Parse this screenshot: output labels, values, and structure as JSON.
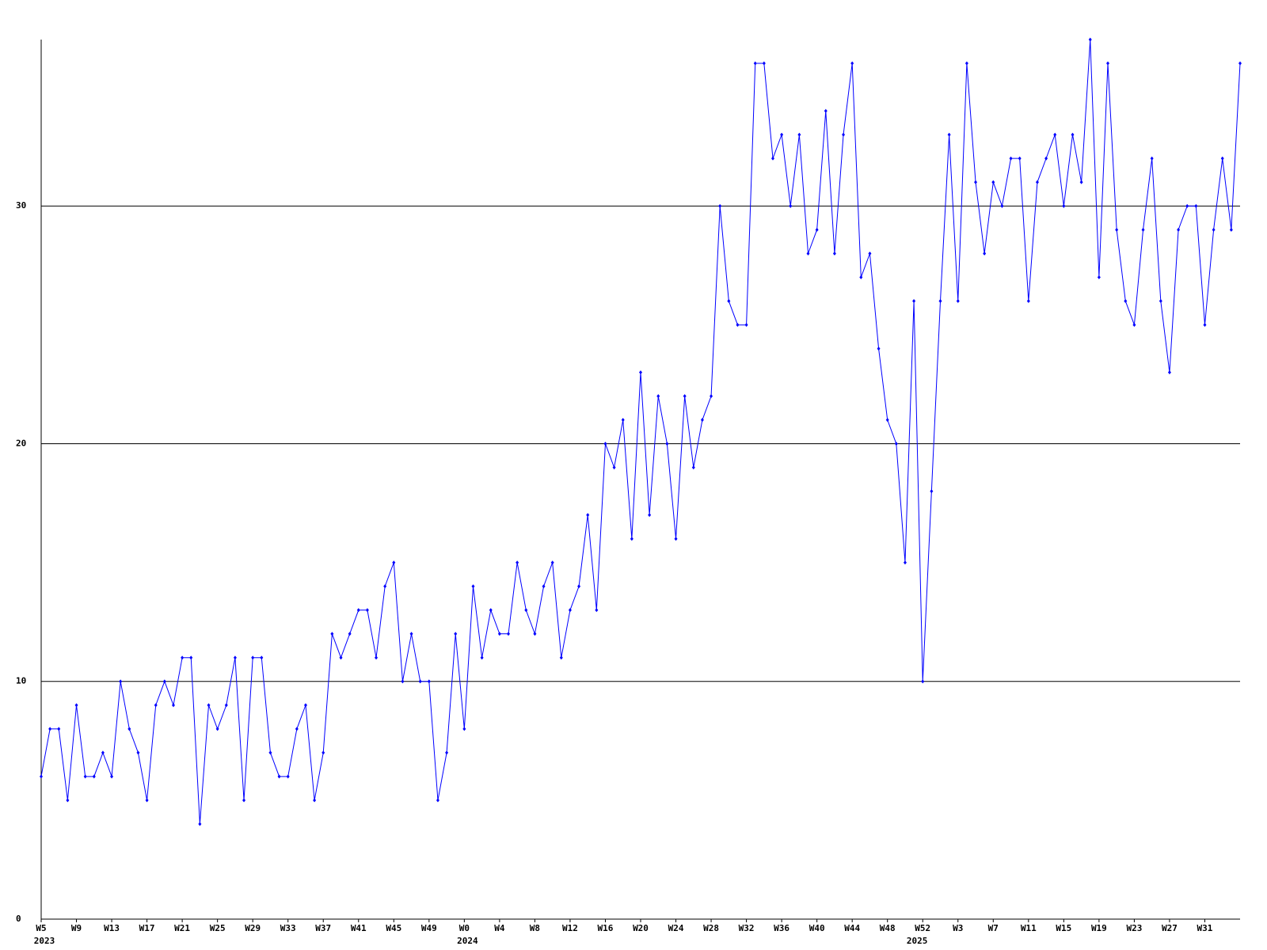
{
  "chart_data": {
    "type": "line",
    "categories": [
      "W5",
      null,
      null,
      null,
      "W9",
      null,
      null,
      null,
      "W13",
      null,
      null,
      null,
      "W17",
      null,
      null,
      null,
      "W21",
      null,
      null,
      null,
      "W25",
      null,
      null,
      null,
      "W29",
      null,
      null,
      null,
      "W33",
      null,
      null,
      null,
      "W37",
      null,
      null,
      null,
      "W41",
      null,
      null,
      null,
      "W45",
      null,
      null,
      null,
      "W49",
      null,
      null,
      null,
      "W0",
      null,
      null,
      null,
      "W4",
      null,
      null,
      null,
      "W8",
      null,
      null,
      null,
      "W12",
      null,
      null,
      null,
      "W16",
      null,
      null,
      null,
      "W20",
      null,
      null,
      null,
      "W24",
      null,
      null,
      null,
      "W28",
      null,
      null,
      null,
      "W32",
      null,
      null,
      null,
      "W36",
      null,
      null,
      null,
      "W40",
      null,
      null,
      null,
      "W44",
      null,
      null,
      null,
      "W48",
      null,
      null,
      null,
      "W52",
      null,
      null,
      null,
      "W3",
      null,
      null,
      null,
      "W7",
      null,
      null,
      null,
      "W11",
      null,
      null,
      null,
      "W15",
      null,
      null,
      null,
      "W19",
      null,
      null,
      null,
      "W23",
      null,
      null,
      null,
      "W27",
      null,
      null,
      null,
      "W31",
      null,
      null,
      null,
      null
    ],
    "years": [
      "2023",
      null,
      null,
      null,
      null,
      null,
      null,
      null,
      null,
      null,
      null,
      null,
      null,
      null,
      null,
      null,
      null,
      null,
      null,
      null,
      null,
      null,
      null,
      null,
      null,
      null,
      null,
      null,
      null,
      null,
      null,
      null,
      null,
      null,
      null,
      null,
      null,
      null,
      null,
      null,
      null,
      null,
      null,
      null,
      null,
      null,
      null,
      null,
      "2024",
      null,
      null,
      null,
      null,
      null,
      null,
      null,
      null,
      null,
      null,
      null,
      null,
      null,
      null,
      null,
      null,
      null,
      null,
      null,
      null,
      null,
      null,
      null,
      null,
      null,
      null,
      null,
      null,
      null,
      null,
      null,
      null,
      null,
      null,
      null,
      null,
      null,
      null,
      null,
      null,
      null,
      null,
      null,
      null,
      null,
      null,
      null,
      null,
      null,
      null,
      "2025",
      null,
      null,
      null,
      null,
      null,
      null,
      null,
      null,
      null,
      null,
      null,
      null,
      null,
      null,
      null,
      null,
      null,
      null,
      null,
      null,
      null,
      null,
      null,
      null,
      null,
      null,
      null,
      null,
      null,
      null,
      null,
      null,
      null,
      null,
      null
    ],
    "series": [
      {
        "color": "#0000ff",
        "values": [
          6,
          8,
          8,
          5,
          9,
          6,
          6,
          7,
          6,
          10,
          8,
          7,
          5,
          9,
          10,
          9,
          11,
          11,
          4,
          9,
          8,
          9,
          11,
          5,
          11,
          11,
          7,
          6,
          6,
          8,
          9,
          5,
          7,
          12,
          11,
          12,
          13,
          13,
          11,
          14,
          15,
          10,
          12,
          10,
          10,
          5,
          7,
          12,
          8,
          14,
          11,
          13,
          12,
          12,
          15,
          13,
          12,
          14,
          15,
          11,
          13,
          14,
          17,
          13,
          20,
          19,
          21,
          16,
          23,
          17,
          22,
          20,
          16,
          22,
          19,
          21,
          22,
          30,
          26,
          25,
          25,
          36,
          36,
          32,
          33,
          30,
          33,
          28,
          29,
          34,
          28,
          33,
          36,
          27,
          28,
          24,
          21,
          20,
          15,
          26,
          10,
          18,
          26,
          33,
          26,
          36,
          31,
          28,
          31,
          30,
          32,
          32,
          26,
          31,
          32,
          33,
          30,
          33,
          31,
          37,
          27,
          36,
          29,
          26,
          25,
          29,
          32,
          26,
          23,
          29,
          30,
          30,
          25,
          29,
          32,
          29,
          36
        ]
      }
    ],
    "ylim": [
      0,
      37
    ],
    "yticks": [
      0,
      10,
      20,
      30
    ],
    "grid": true
  }
}
